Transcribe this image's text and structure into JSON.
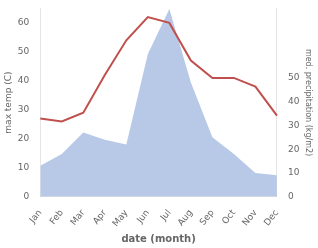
{
  "chart_data": {
    "type": "line",
    "categories": [
      "Jan",
      "Feb",
      "Mar",
      "Apr",
      "May",
      "Jun",
      "Jul",
      "Aug",
      "Sep",
      "Oct",
      "Nov",
      "Dec"
    ],
    "series": [
      {
        "type": "area",
        "color": "#b8c9e8",
        "axis": "y2",
        "values": [
          13,
          18,
          27,
          24,
          22,
          60,
          79,
          48,
          25,
          18,
          10,
          9
        ]
      },
      {
        "type": "line",
        "color": "#c0504d",
        "axis": "y",
        "values": [
          27,
          26,
          29,
          42,
          54,
          62,
          60,
          47,
          41,
          41,
          38,
          28
        ]
      }
    ],
    "x_label": "date (month)",
    "y_label": "max temp (C)",
    "y2_label": "med. precipitation (kg/m2)",
    "ylim": [
      0,
      65
    ],
    "yticks": [
      0,
      10,
      20,
      30,
      40,
      50,
      60
    ],
    "y2lim": [
      0,
      79.2
    ],
    "y2ticks": [
      0,
      10,
      20,
      30,
      40,
      50
    ],
    "grid": false
  }
}
